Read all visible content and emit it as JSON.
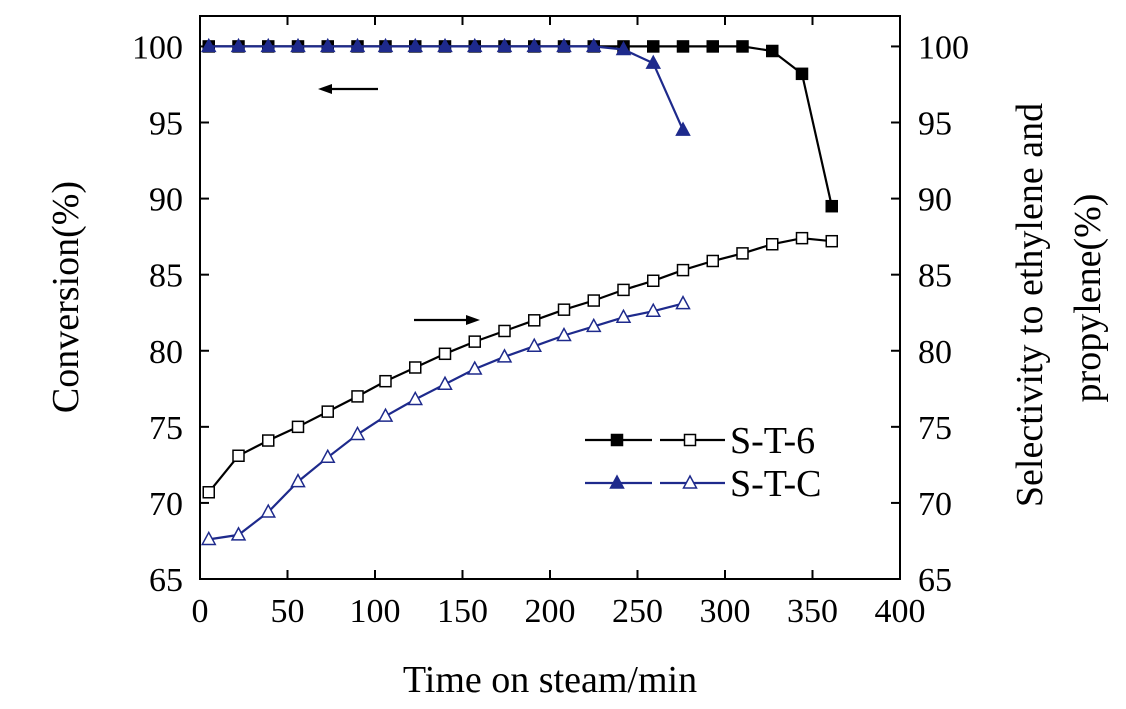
{
  "chart_data": {
    "type": "line",
    "xlabel": "Time on steam/min",
    "ylabel_left": "Conversion(%)",
    "ylabel_right_lines": [
      "Selectivity to ethylene and",
      "propylene(%)"
    ],
    "xlim": [
      0,
      400
    ],
    "ylim": [
      65,
      102
    ],
    "x_ticks": [
      0,
      50,
      100,
      150,
      200,
      250,
      300,
      350,
      400
    ],
    "y_ticks_left": [
      65,
      70,
      75,
      80,
      85,
      90,
      95,
      100
    ],
    "y_ticks_right": [
      65,
      70,
      75,
      80,
      85,
      90,
      95,
      100
    ],
    "grid": false,
    "legend_position": "lower-right",
    "annotations": [
      {
        "type": "arrow",
        "direction": "left",
        "meaning": "conversion curves use left axis",
        "x": 150,
        "y": 97.7
      },
      {
        "type": "arrow",
        "direction": "right",
        "meaning": "selectivity curves use right axis",
        "x": 320,
        "y": 82.4
      }
    ],
    "series": [
      {
        "name": "S-T-6",
        "metric": "Conversion",
        "axis": "left",
        "marker": "square",
        "filled": true,
        "color": "#000000",
        "x": [
          5,
          22,
          39,
          56,
          73,
          90,
          106,
          123,
          140,
          157,
          174,
          191,
          208,
          225,
          242,
          259,
          276,
          293,
          310,
          327,
          344,
          361
        ],
        "y": [
          100,
          100,
          100,
          100,
          100,
          100,
          100,
          100,
          100,
          100,
          100,
          100,
          100,
          100,
          100,
          100,
          100,
          100,
          100,
          99.7,
          98.2,
          89.5
        ]
      },
      {
        "name": "S-T-6",
        "metric": "Selectivity",
        "axis": "right",
        "marker": "square",
        "filled": false,
        "color": "#000000",
        "x": [
          5,
          22,
          39,
          56,
          73,
          90,
          106,
          123,
          140,
          157,
          174,
          191,
          208,
          225,
          242,
          259,
          276,
          293,
          310,
          327,
          344,
          361
        ],
        "y": [
          70.7,
          73.1,
          74.1,
          75.0,
          76.0,
          77.0,
          78.0,
          78.9,
          79.8,
          80.6,
          81.3,
          82.0,
          82.7,
          83.3,
          84.0,
          84.6,
          85.3,
          85.9,
          86.4,
          87.0,
          87.4,
          87.2
        ]
      },
      {
        "name": "S-T-C",
        "metric": "Conversion",
        "axis": "left",
        "marker": "triangle",
        "filled": true,
        "color": "#1e2a8c",
        "x": [
          5,
          22,
          39,
          56,
          73,
          90,
          106,
          123,
          140,
          157,
          174,
          191,
          208,
          225,
          242,
          259,
          276
        ],
        "y": [
          100,
          100,
          100,
          100,
          100,
          100,
          100,
          100,
          100,
          100,
          100,
          100,
          100,
          100,
          99.8,
          98.9,
          94.5
        ]
      },
      {
        "name": "S-T-C",
        "metric": "Selectivity",
        "axis": "right",
        "marker": "triangle",
        "filled": false,
        "color": "#1e2a8c",
        "x": [
          5,
          22,
          39,
          56,
          73,
          90,
          106,
          123,
          140,
          157,
          174,
          191,
          208,
          225,
          242,
          259,
          276
        ],
        "y": [
          67.6,
          67.9,
          69.4,
          71.4,
          73.0,
          74.5,
          75.7,
          76.8,
          77.8,
          78.8,
          79.6,
          80.3,
          81.0,
          81.6,
          82.2,
          82.6,
          83.1
        ]
      }
    ],
    "legend": [
      {
        "label": "S-T-6",
        "color": "#000000",
        "marker": "square"
      },
      {
        "label": "S-T-C",
        "color": "#1e2a8c",
        "marker": "triangle"
      }
    ]
  }
}
